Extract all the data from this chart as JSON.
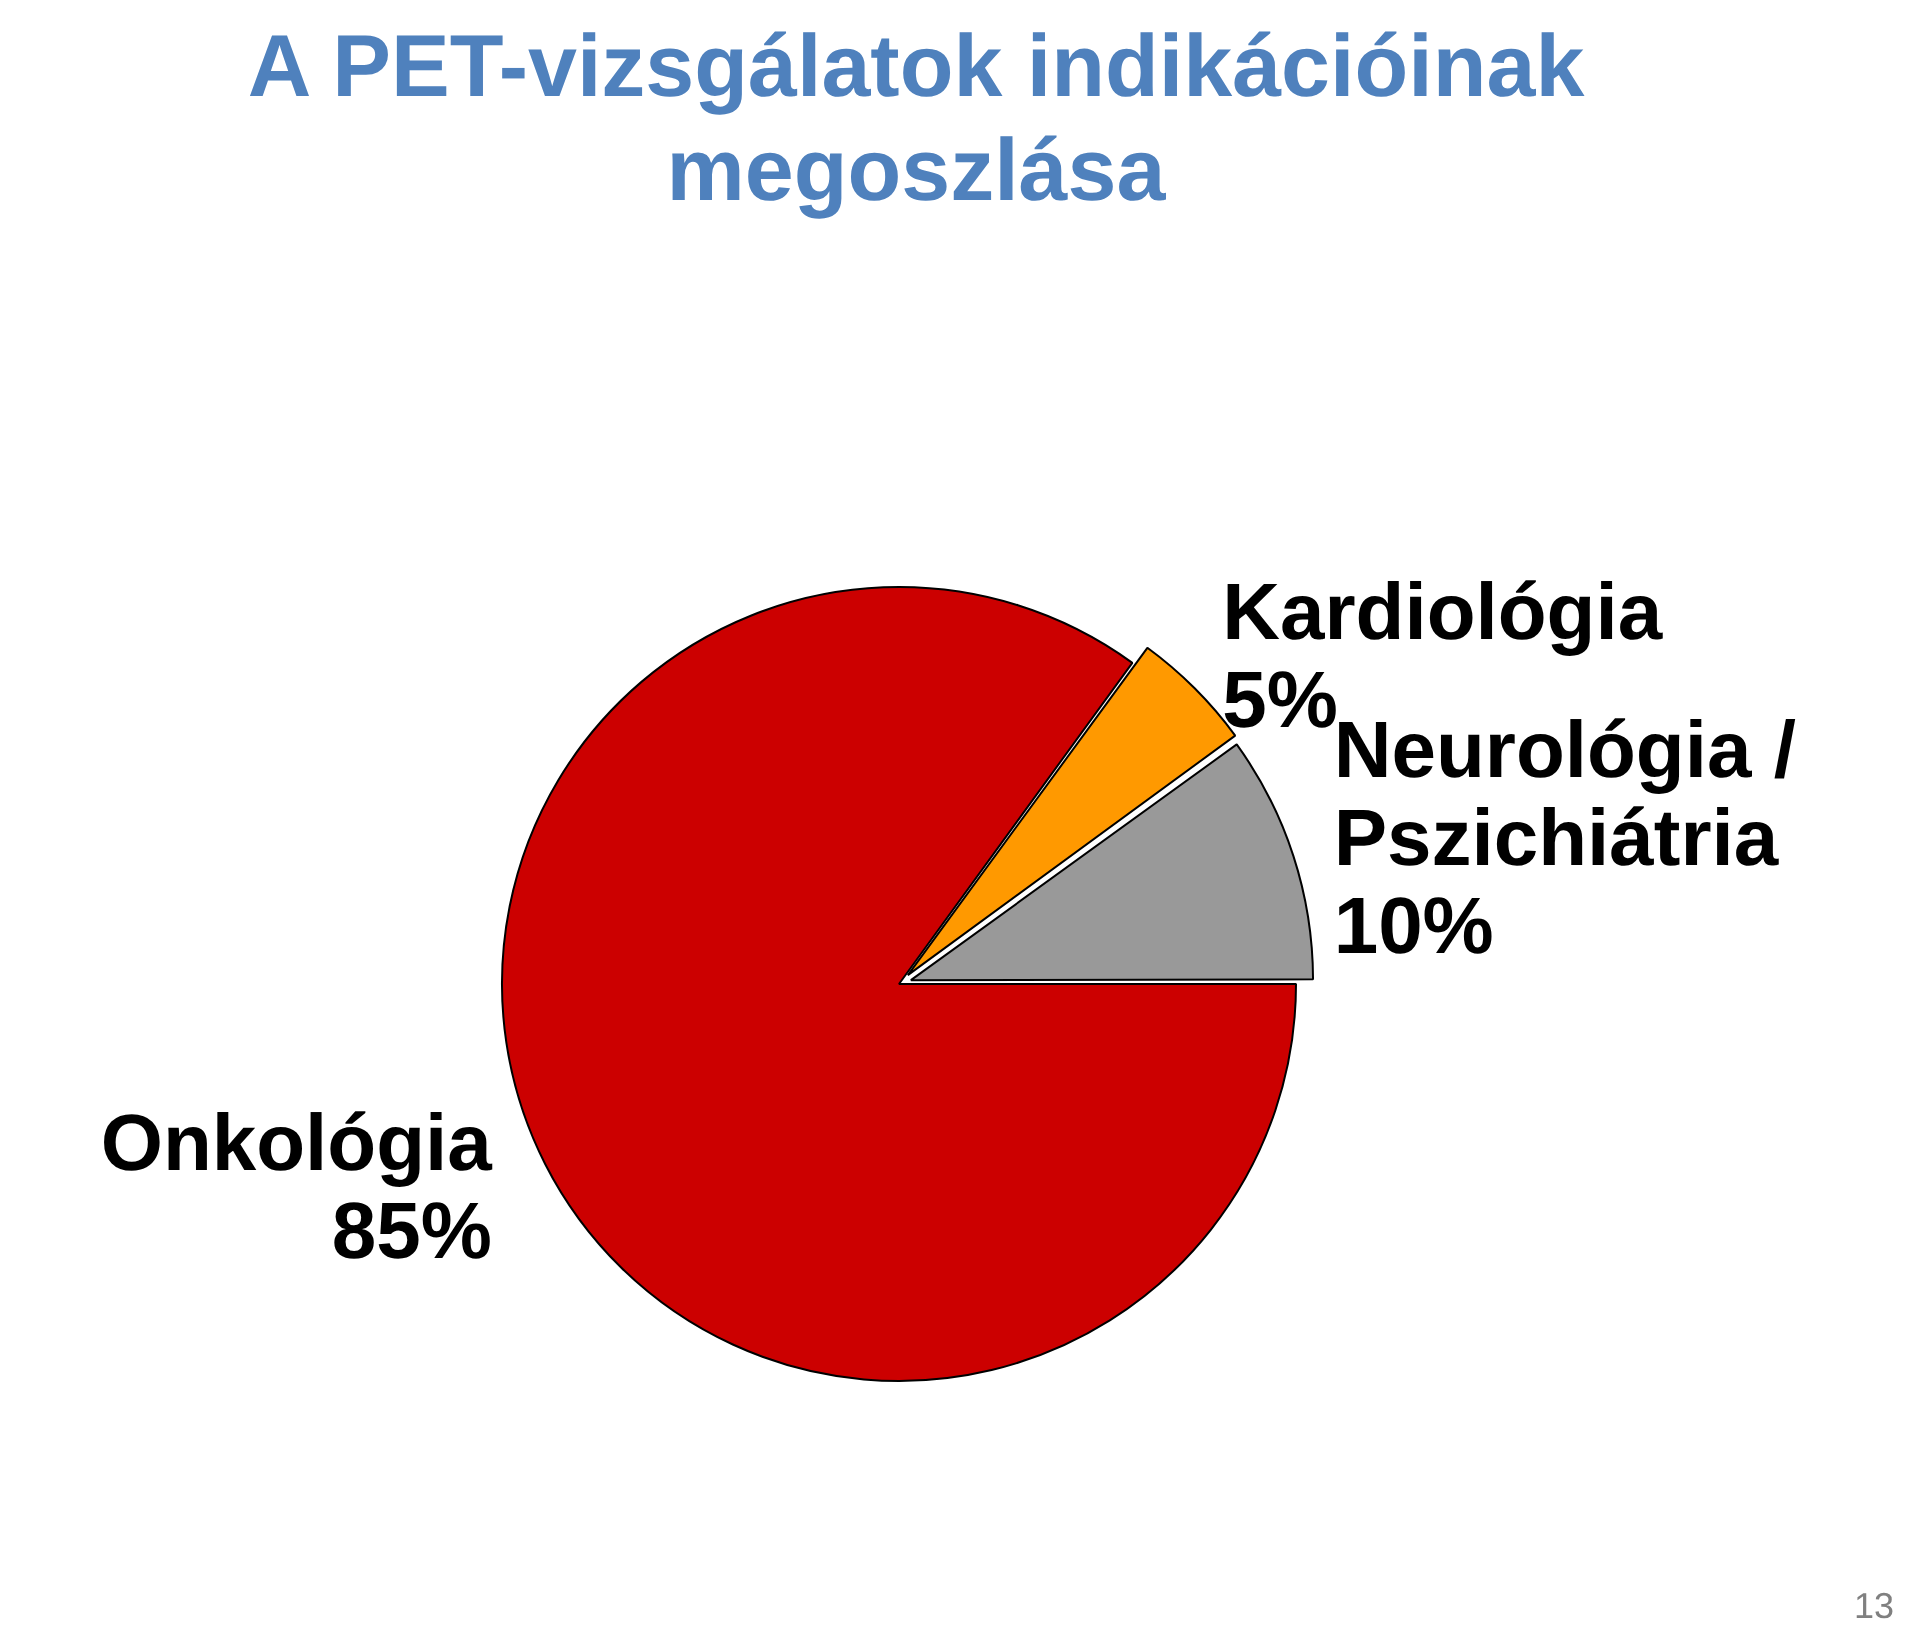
{
  "chart_data": {
    "type": "pie",
    "title": "A PET-vizsgálatok indikációinak megoszlása",
    "categories": [
      "Onkológia",
      "Kardiológia",
      "Neurológia / Pszichiátria"
    ],
    "values": [
      85,
      5,
      10
    ],
    "colors": [
      "#cc0000",
      "#ff9900",
      "#999999"
    ],
    "value_labels": [
      "85%",
      "5%",
      "10%"
    ],
    "legend": false,
    "annotations": [
      "13"
    ]
  }
}
